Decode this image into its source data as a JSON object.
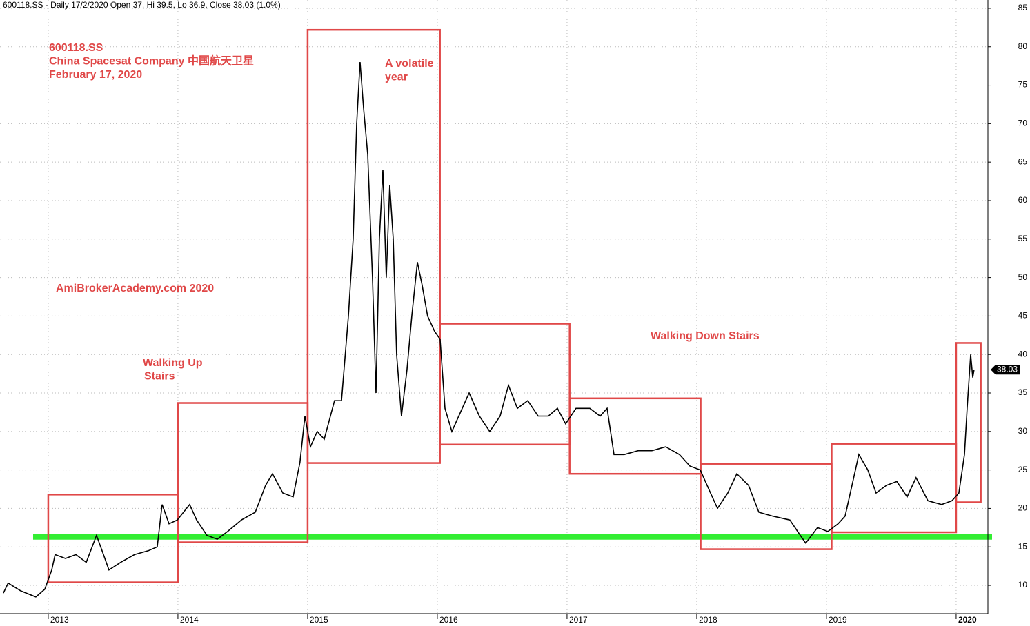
{
  "chart_data": {
    "type": "line",
    "header": "600118.SS - Daily 17/2/2020 Open 37, Hi 39.5, Lo 36.9, Close 38.03 (1.0%)",
    "annotations": [
      [
        "600118.SS",
        "China Spacesat Company  中国航天卫星",
        "February 17, 2020"
      ],
      [
        "AmiBrokerAcademy.com  2020"
      ],
      [
        "Walking Up",
        "Stairs"
      ],
      [
        "A volatile",
        "year"
      ],
      [
        "Walking Down Stairs"
      ]
    ],
    "x": [
      2012.654,
      2012.691,
      2012.787,
      2012.904,
      2012.973,
      2013.027,
      2013.053,
      2013.133,
      2013.213,
      2013.293,
      2013.372,
      2013.426,
      2013.468,
      2013.559,
      2013.665,
      2013.771,
      2013.84,
      2013.878,
      2013.931,
      2013.995,
      2014.09,
      2014.144,
      2014.223,
      2014.303,
      2014.383,
      2014.489,
      2014.596,
      2014.676,
      2014.729,
      2014.809,
      2014.888,
      2014.941,
      2014.979,
      2015.021,
      2015.074,
      2015.128,
      2015.207,
      2015.261,
      2015.314,
      2015.351,
      2015.378,
      2015.404,
      2015.431,
      2015.463,
      2015.5,
      2015.527,
      2015.553,
      2015.58,
      2015.606,
      2015.633,
      2015.66,
      2015.686,
      2015.723,
      2015.766,
      2015.803,
      2015.846,
      2015.883,
      2015.925,
      2015.979,
      2016.021,
      2016.059,
      2016.112,
      2016.165,
      2016.245,
      2016.324,
      2016.404,
      2016.484,
      2016.548,
      2016.617,
      2016.697,
      2016.777,
      2016.856,
      2016.926,
      2016.989,
      2017.069,
      2017.176,
      2017.255,
      2017.309,
      2017.362,
      2017.441,
      2017.548,
      2017.654,
      2017.761,
      2017.867,
      2017.947,
      2018.027,
      2018.106,
      2018.16,
      2018.239,
      2018.309,
      2018.399,
      2018.479,
      2018.585,
      2018.718,
      2018.798,
      2018.84,
      2018.931,
      2019.011,
      2019.09,
      2019.144,
      2019.197,
      2019.25,
      2019.319,
      2019.383,
      2019.463,
      2019.543,
      2019.622,
      2019.691,
      2019.782,
      2019.888,
      2019.968,
      2020.021,
      2020.064,
      2020.085,
      2020.112,
      2020.128,
      2020.138
    ],
    "values": [
      9.0,
      10.3,
      9.3,
      8.5,
      9.5,
      12,
      14,
      13.5,
      14,
      13,
      16.5,
      14,
      12,
      13,
      14,
      14.5,
      15,
      20.5,
      18,
      18.5,
      20.5,
      18.5,
      16.5,
      16,
      17,
      18.5,
      19.5,
      23,
      24.5,
      22,
      21.5,
      26,
      32,
      28,
      30,
      29,
      34,
      34,
      45,
      55,
      70,
      78,
      72,
      66,
      50,
      35,
      55,
      64,
      50,
      62,
      55,
      40,
      32,
      38,
      45,
      52,
      49,
      45,
      43,
      42,
      33,
      30,
      32,
      35,
      32,
      30,
      32,
      36,
      33,
      34,
      32,
      32,
      33,
      31,
      33,
      33,
      32,
      33,
      27,
      27,
      27.5,
      27.5,
      28,
      27,
      25.5,
      25,
      22,
      20,
      22,
      24.5,
      23,
      19.5,
      19,
      18.5,
      16.5,
      15.5,
      17.5,
      17,
      18,
      19,
      23,
      27,
      25,
      22,
      23,
      23.5,
      21.5,
      24,
      21,
      20.5,
      21,
      22,
      27,
      33,
      40,
      37,
      38.03
    ],
    "color": "#000000",
    "boxes": [
      {
        "x": [
          2013.0,
          2014.0
        ],
        "y": [
          10.4,
          21.8
        ]
      },
      {
        "x": [
          2014.0,
          2015.0
        ],
        "y": [
          15.6,
          33.7
        ]
      },
      {
        "x": [
          2015.0,
          2016.02
        ],
        "y": [
          25.9,
          82.2
        ]
      },
      {
        "x": [
          2016.02,
          2017.02
        ],
        "y": [
          28.3,
          44.0
        ]
      },
      {
        "x": [
          2017.02,
          2018.03
        ],
        "y": [
          24.5,
          34.3
        ]
      },
      {
        "x": [
          2018.03,
          2019.04
        ],
        "y": [
          14.7,
          25.8
        ]
      },
      {
        "x": [
          2019.04,
          2020.0
        ],
        "y": [
          16.9,
          28.4
        ]
      },
      {
        "x": [
          2020.0,
          2020.19
        ],
        "y": [
          20.8,
          41.5
        ]
      }
    ],
    "box_color": "#e04848",
    "hline": 16.3,
    "hline_color": "#33ee33",
    "xlim": [
      2012.628,
      2020.245
    ],
    "xticks": [
      2013,
      2014,
      2015,
      2016,
      2017,
      2018,
      2019,
      2020
    ],
    "ylim": [
      6.33,
      86.07
    ],
    "yticks": [
      10,
      15,
      20,
      25,
      30,
      35,
      40,
      45,
      50,
      55,
      60,
      65,
      70,
      75,
      80,
      85
    ],
    "grid": true
  }
}
